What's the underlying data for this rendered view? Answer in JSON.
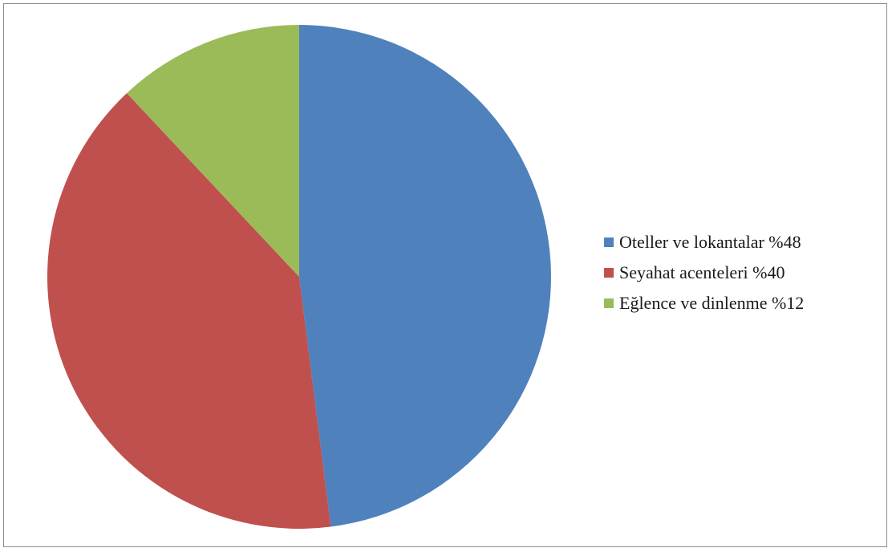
{
  "chart_data": {
    "type": "pie",
    "title": "",
    "slices": [
      {
        "label": "Oteller ve lokantalar %48",
        "value": 48,
        "color": "#4F81BD"
      },
      {
        "label": "Seyahat acenteleri %40",
        "value": 40,
        "color": "#C0504D"
      },
      {
        "label": "Eğlence ve dinlenme %12",
        "value": 12,
        "color": "#9BBB59"
      }
    ],
    "start_angle": "12 o'clock",
    "direction": "clockwise",
    "legend_position": "right"
  }
}
